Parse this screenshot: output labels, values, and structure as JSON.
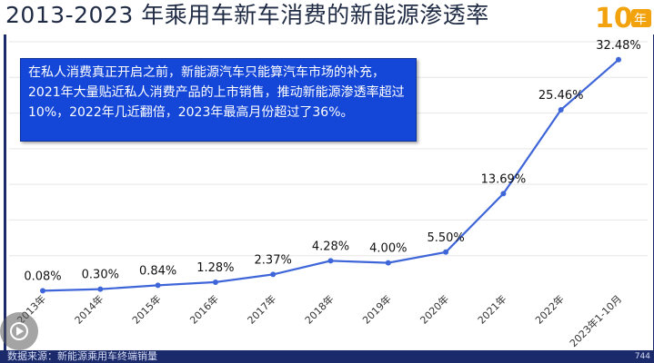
{
  "header": {
    "title": "2013-2023 年乘用车新车消费的新能源渗透率",
    "logo_text": "10",
    "logo_sub": "年"
  },
  "callout": {
    "text": "在私人消费真正开启之前，新能源汽车只能算汽车市场的补充，2021年大量贴近私人消费产品的上市销售，推动新能源渗透率超过10%，2022年几近翻倍，2023年最高月份超过了36%。"
  },
  "footer": {
    "source": "数据来源：新能源乘用车终端销量",
    "page": "744"
  },
  "colors": {
    "line": "#3f66d9",
    "callout_bg": "#1447d8",
    "frame": "#1b2a6b"
  },
  "chart_data": {
    "type": "line",
    "title": "2013-2023 年乘用车新车消费的新能源渗透率",
    "xlabel": "",
    "ylabel": "",
    "categories": [
      "2013年",
      "2014年",
      "2015年",
      "2016年",
      "2017年",
      "2018年",
      "2019年",
      "2020年",
      "2021年",
      "2022年",
      "2023年1-10月"
    ],
    "values": [
      0.08,
      0.3,
      0.84,
      1.28,
      2.37,
      4.28,
      4.0,
      5.5,
      13.69,
      25.46,
      32.48
    ],
    "data_labels": [
      "0.08%",
      "0.30%",
      "0.84%",
      "1.28%",
      "2.37%",
      "4.28%",
      "4.00%",
      "5.50%",
      "13.69%",
      "25.46%",
      "32.48%"
    ],
    "ylim": [
      0,
      35
    ],
    "grid": true,
    "legend": "none"
  }
}
